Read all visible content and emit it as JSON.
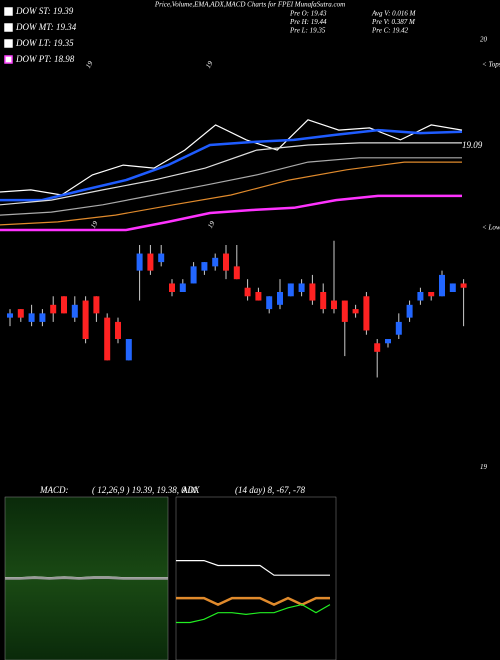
{
  "chart_data": [
    {
      "type": "candlestick",
      "title": "Price,Volume,EMA,ADX,MACD Charts for FPEI MunafaSutra.com",
      "legend": [
        {
          "label": "DOW ST: 19.39",
          "color": "#ffffff"
        },
        {
          "label": "DOW MT: 19.34",
          "color": "#ffffff"
        },
        {
          "label": "DOW LT: 19.35",
          "color": "#ffffff"
        },
        {
          "label": "DOW PT: 18.98",
          "color": "#ff44ff"
        }
      ],
      "stats": [
        "Pre  O: 19.43",
        "Avg V: 0.016  M",
        "Pre  H: 19.44",
        "Pre  V: 0.387 M",
        "Pre  L: 19.35",
        "Pre  C: 19.42"
      ],
      "annotations": [
        "19.09",
        "< Tops",
        "< Lows"
      ],
      "markers": [
        "19",
        "19",
        "19",
        "19"
      ],
      "up_color": "#2266ff",
      "down_color": "#ff2222",
      "open": [
        19.35,
        19.37,
        19.34,
        19.34,
        19.38,
        19.4,
        19.35,
        19.39,
        19.4,
        19.35,
        19.34,
        19.25,
        19.46,
        19.5,
        19.48,
        19.43,
        19.41,
        19.43,
        19.46,
        19.47,
        19.5,
        19.47,
        19.42,
        19.41,
        19.37,
        19.38,
        19.4,
        19.41,
        19.43,
        19.41,
        19.39,
        19.39,
        19.37,
        19.4,
        19.29,
        19.29,
        19.31,
        19.35,
        19.39,
        19.41,
        19.4,
        19.41,
        19.43
      ],
      "high": [
        19.37,
        19.37,
        19.38,
        19.37,
        19.4,
        19.4,
        19.4,
        19.4,
        19.4,
        19.36,
        19.35,
        19.3,
        19.52,
        19.52,
        19.52,
        19.44,
        19.44,
        19.48,
        19.48,
        19.5,
        19.52,
        19.52,
        19.44,
        19.42,
        19.4,
        19.44,
        19.43,
        19.44,
        19.45,
        19.43,
        19.53,
        19.39,
        19.38,
        19.41,
        19.3,
        19.3,
        19.36,
        19.39,
        19.42,
        19.41,
        19.46,
        19.43,
        19.44
      ],
      "low": [
        19.33,
        19.34,
        19.33,
        19.33,
        19.34,
        19.36,
        19.34,
        19.29,
        19.34,
        19.25,
        19.29,
        19.25,
        19.39,
        19.45,
        19.47,
        19.4,
        19.41,
        19.43,
        19.45,
        19.46,
        19.44,
        19.44,
        19.39,
        19.39,
        19.36,
        19.37,
        19.4,
        19.4,
        19.38,
        19.36,
        19.36,
        19.26,
        19.35,
        19.31,
        19.21,
        19.28,
        19.3,
        19.34,
        19.38,
        19.39,
        19.4,
        19.41,
        19.33
      ],
      "close": [
        19.36,
        19.35,
        19.36,
        19.36,
        19.36,
        19.36,
        19.38,
        19.3,
        19.36,
        19.25,
        19.3,
        19.3,
        19.5,
        19.46,
        19.5,
        19.41,
        19.43,
        19.47,
        19.48,
        19.49,
        19.46,
        19.44,
        19.4,
        19.39,
        19.4,
        19.41,
        19.43,
        19.43,
        19.39,
        19.37,
        19.37,
        19.34,
        19.36,
        19.32,
        19.27,
        19.3,
        19.34,
        19.38,
        19.41,
        19.4,
        19.45,
        19.43,
        19.42
      ],
      "series": [
        {
          "color": "#ffffff",
          "values": [
            19.644,
            19.649,
            19.637,
            19.684,
            19.707,
            19.7,
            19.742,
            19.801,
            19.766,
            19.742,
            19.813,
            19.789,
            19.794,
            19.766,
            19.801,
            19.789
          ]
        },
        {
          "color": "#1f5cff",
          "values": [
            19.625,
            19.625,
            19.649,
            19.672,
            19.707,
            19.754,
            19.761,
            19.766,
            19.778,
            19.789,
            19.782,
            19.785
          ]
        },
        {
          "color": "#dddddd",
          "values": [
            19.614,
            19.625,
            19.649,
            19.672,
            19.7,
            19.742,
            19.754,
            19.759,
            19.759,
            19.759
          ]
        },
        {
          "color": "#aaaaaa",
          "values": [
            19.59,
            19.597,
            19.614,
            19.637,
            19.66,
            19.684,
            19.714,
            19.724,
            19.724,
            19.724
          ]
        },
        {
          "color": "#e08a2c",
          "values": [
            19.567,
            19.574,
            19.59,
            19.614,
            19.637,
            19.672,
            19.696,
            19.714,
            19.714
          ]
        },
        {
          "color": "#ff33ff",
          "values": [
            19.555,
            19.555,
            19.555,
            19.555,
            19.574,
            19.595,
            19.602,
            19.607,
            19.625,
            19.635,
            19.635,
            19.635
          ]
        }
      ],
      "ylim": [
        18.97,
        20.07
      ],
      "yticks": [
        19,
        20
      ]
    },
    {
      "type": "line",
      "title": "MACD:",
      "subtitle": "( 12,26,9 ) 19.39, 19.38, 0.01",
      "series": [
        {
          "color": "#ffffff",
          "values": [
            0.01,
            0.01,
            0.02,
            0.01,
            0.02,
            0.01,
            0.02,
            0.02,
            0.01,
            0.01,
            0.01,
            0.01
          ]
        },
        {
          "color": "#999999",
          "values": [
            0,
            0,
            0.01,
            0,
            0.01,
            0,
            0.01,
            0.01,
            0,
            0,
            0,
            0
          ]
        }
      ],
      "ylim": [
        -1,
        1
      ]
    },
    {
      "type": "line",
      "title": "ADX",
      "subtitle": "(14  day) 8,  -67,  -78",
      "series": [
        {
          "color": "#ffffff",
          "values": [
            61,
            61,
            61,
            58,
            58,
            58,
            58,
            52,
            52,
            52,
            52,
            52
          ]
        },
        {
          "color": "#e08a2c",
          "values": [
            38,
            38,
            38,
            34,
            38,
            38,
            38,
            34,
            38,
            34,
            38,
            38
          ]
        },
        {
          "color": "#22ee22",
          "values": [
            23,
            23,
            25,
            29,
            29,
            28,
            29,
            29,
            32,
            34,
            29,
            34
          ]
        }
      ],
      "ylim": [
        0,
        100
      ]
    }
  ]
}
